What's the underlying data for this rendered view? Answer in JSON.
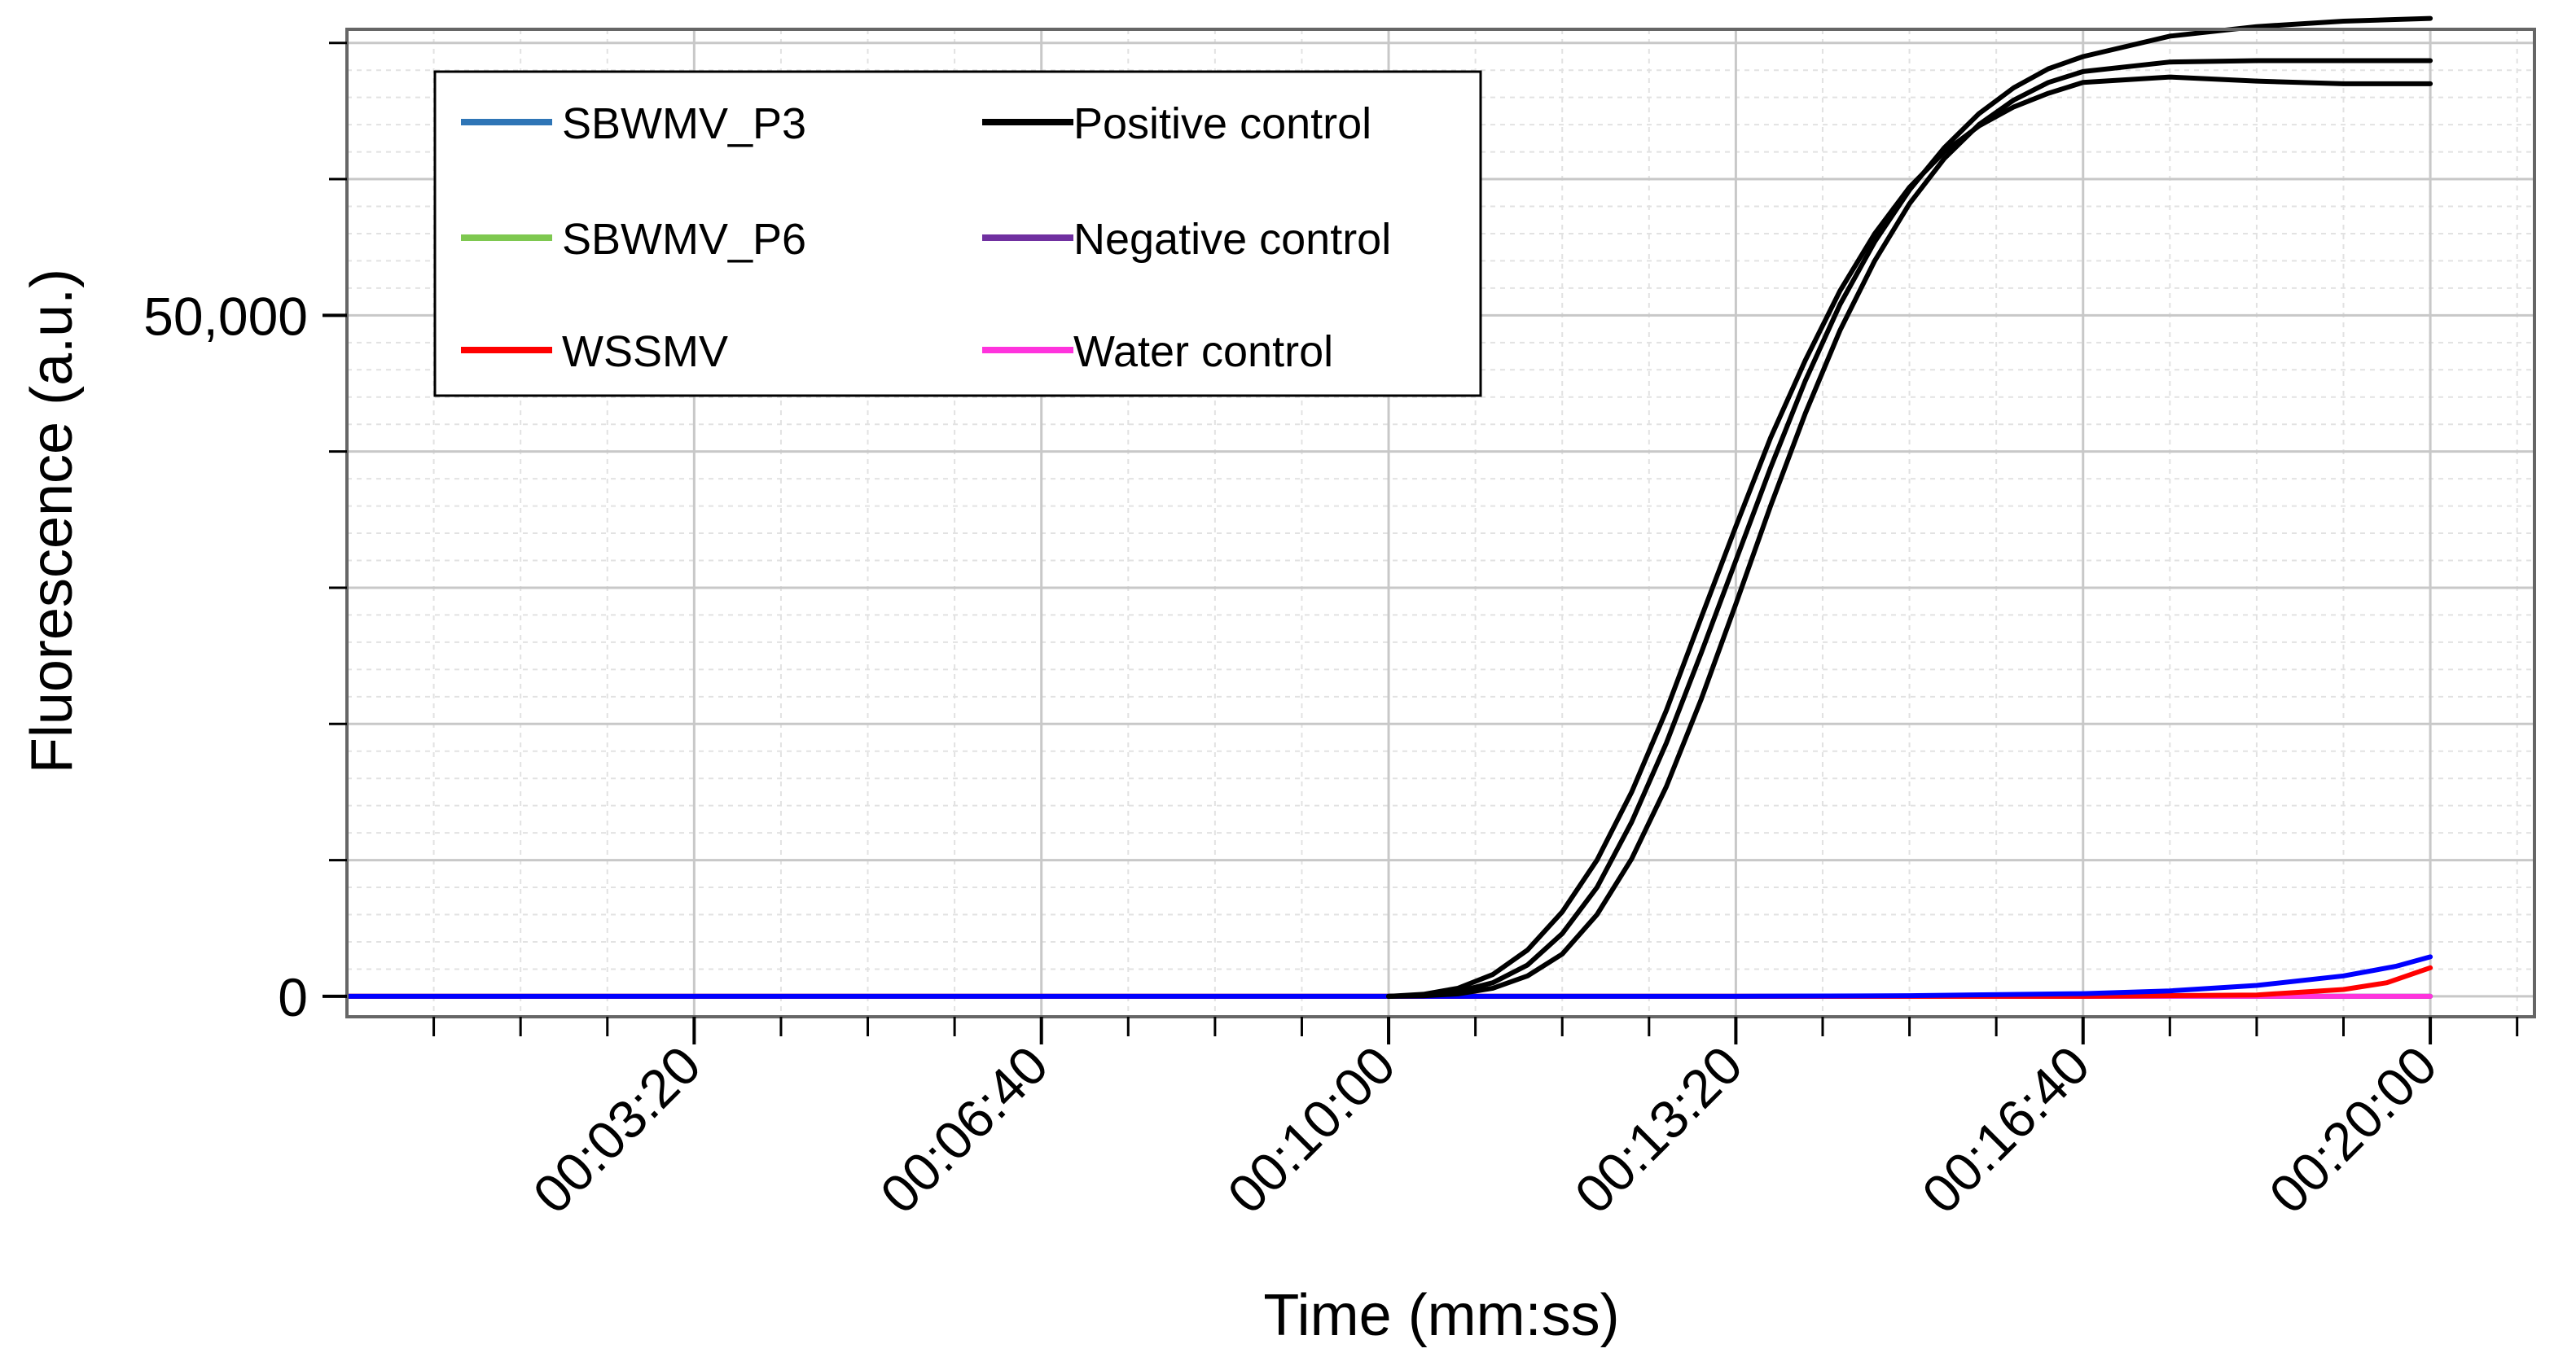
{
  "chart_data": {
    "type": "line",
    "xlabel": "Time (mm:ss)",
    "ylabel": "Fluorescence (a.u.)",
    "xlim": [
      0,
      1260
    ],
    "ylim": [
      -1500,
      71000
    ],
    "x_ticks": [
      {
        "value": 200,
        "label": "00:03:20"
      },
      {
        "value": 400,
        "label": "00:06:40"
      },
      {
        "value": 600,
        "label": "00:10:00"
      },
      {
        "value": 800,
        "label": "00:13:20"
      },
      {
        "value": 1000,
        "label": "00:16:40"
      },
      {
        "value": 1200,
        "label": "00:20:00"
      }
    ],
    "y_ticks": [
      {
        "value": 0,
        "label": "0"
      },
      {
        "value": 50000,
        "label": "50,000"
      }
    ],
    "y_minor_ticks": [
      10000,
      20000,
      30000,
      40000,
      60000,
      70000
    ],
    "grid": true,
    "legend_position": "top-left",
    "series": [
      {
        "name": "SBWMV_P3",
        "color": "#2e75b6",
        "legend": true,
        "x": [
          0,
          200,
          400,
          600,
          800,
          1000,
          1100,
          1150,
          1200
        ],
        "y": [
          0,
          0,
          0,
          0,
          0,
          0,
          0,
          0,
          0
        ]
      },
      {
        "name": "SBWMV_P6",
        "color": "#7ec850",
        "legend": true,
        "x": [
          0,
          200,
          400,
          600,
          800,
          1000,
          1100,
          1150,
          1200
        ],
        "y": [
          0,
          0,
          0,
          0,
          0,
          0,
          0,
          0,
          0
        ]
      },
      {
        "name": "WSSMV",
        "color": "#ff0000",
        "legend": true,
        "x": [
          0,
          200,
          400,
          600,
          800,
          1000,
          1100,
          1150,
          1175,
          1200
        ],
        "y": [
          0,
          0,
          0,
          0,
          0,
          0,
          100,
          500,
          1000,
          2100
        ]
      },
      {
        "name": "Positive control",
        "color": "#000000",
        "legend": true,
        "x": [
          600,
          620,
          640,
          660,
          680,
          700,
          720,
          740,
          760,
          780,
          800,
          820,
          840,
          860,
          880,
          900,
          920,
          940,
          960,
          980,
          1000,
          1050,
          1100,
          1150,
          1200
        ],
        "y": [
          0,
          150,
          600,
          1600,
          3400,
          6200,
          10000,
          15000,
          21000,
          27800,
          34500,
          41000,
          46700,
          51800,
          56000,
          59400,
          62000,
          63900,
          65300,
          66300,
          67100,
          67500,
          67200,
          67000,
          67000
        ]
      },
      {
        "name": "Positive control (replicate 2)",
        "color": "#000000",
        "legend": false,
        "x": [
          600,
          620,
          640,
          660,
          680,
          700,
          720,
          740,
          760,
          780,
          800,
          820,
          840,
          860,
          880,
          900,
          920,
          940,
          960,
          980,
          1000,
          1050,
          1100,
          1150,
          1200
        ],
        "y": [
          0,
          80,
          350,
          1000,
          2300,
          4600,
          8000,
          12800,
          18600,
          25200,
          32000,
          38800,
          45200,
          50800,
          55400,
          59200,
          62300,
          64800,
          66700,
          68100,
          69000,
          70500,
          71200,
          71600,
          71800
        ]
      },
      {
        "name": "Positive control (replicate 3)",
        "color": "#000000",
        "legend": false,
        "x": [
          600,
          620,
          640,
          660,
          680,
          700,
          720,
          740,
          760,
          780,
          800,
          820,
          840,
          860,
          880,
          900,
          920,
          940,
          960,
          980,
          1000,
          1050,
          1100,
          1150,
          1200
        ],
        "y": [
          0,
          40,
          180,
          600,
          1500,
          3100,
          6000,
          10100,
          15400,
          21800,
          28800,
          36000,
          42800,
          48900,
          54000,
          58200,
          61500,
          64000,
          65800,
          67100,
          67900,
          68600,
          68700,
          68700,
          68700
        ]
      },
      {
        "name": "Negative control",
        "color": "#7030a0",
        "legend": true,
        "x": [
          0,
          200,
          400,
          600,
          800,
          1000,
          1200
        ],
        "y": [
          0,
          0,
          0,
          0,
          0,
          0,
          0
        ]
      },
      {
        "name": "Water control",
        "color": "#ff33dd",
        "legend": true,
        "x": [
          0,
          200,
          400,
          600,
          800,
          1000,
          1200
        ],
        "y": [
          0,
          0,
          0,
          0,
          0,
          0,
          0
        ]
      },
      {
        "name": "SBWMV_P3 (trace)",
        "color": "#0000ff",
        "legend": false,
        "x": [
          0,
          200,
          400,
          600,
          800,
          900,
          1000,
          1050,
          1100,
          1150,
          1180,
          1200
        ],
        "y": [
          0,
          0,
          0,
          0,
          0,
          50,
          200,
          400,
          800,
          1500,
          2200,
          2900
        ]
      }
    ]
  }
}
